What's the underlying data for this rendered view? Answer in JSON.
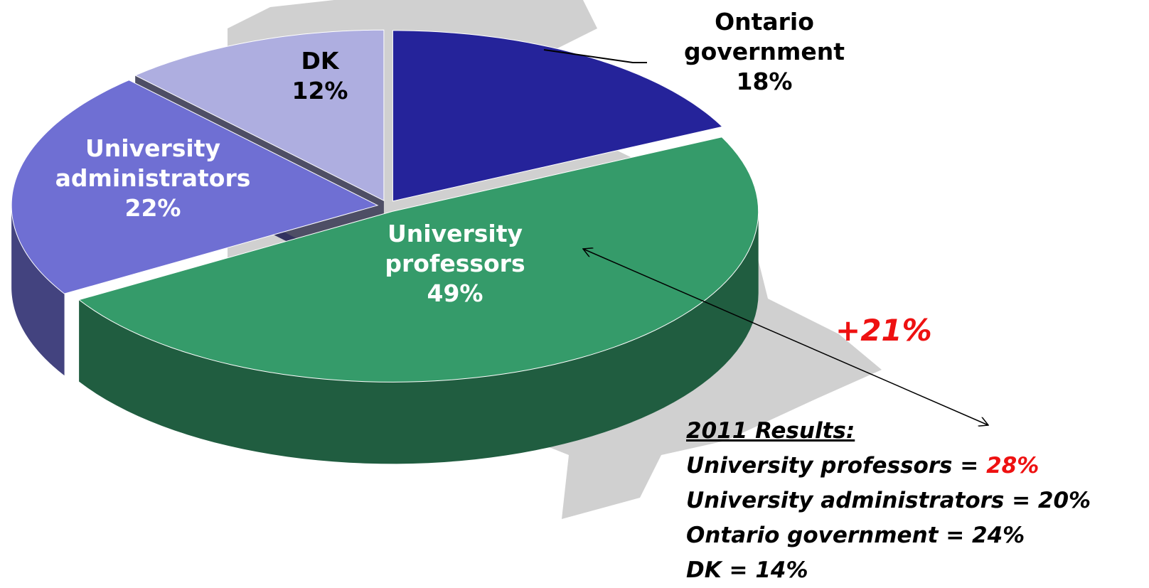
{
  "chart_data": {
    "type": "pie",
    "categories": [
      "Ontario government",
      "University professors",
      "University administrators",
      "DK"
    ],
    "values": [
      18,
      49,
      22,
      12
    ],
    "value_labels": [
      "18%",
      "49%",
      "22%",
      "12%"
    ],
    "colors": [
      "#25239a",
      "#359b6a",
      "#6f6fd3",
      "#aeaee0"
    ],
    "annotation": "+21%",
    "results_2011": {
      "title": "2011 Results:",
      "rows": [
        {
          "label": "University professors = ",
          "value": "28%"
        },
        {
          "label": "University administrators = ",
          "value": "20%"
        },
        {
          "label": "Ontario government = ",
          "value": "24%"
        },
        {
          "label": "DK = ",
          "value": "14%"
        }
      ]
    }
  }
}
